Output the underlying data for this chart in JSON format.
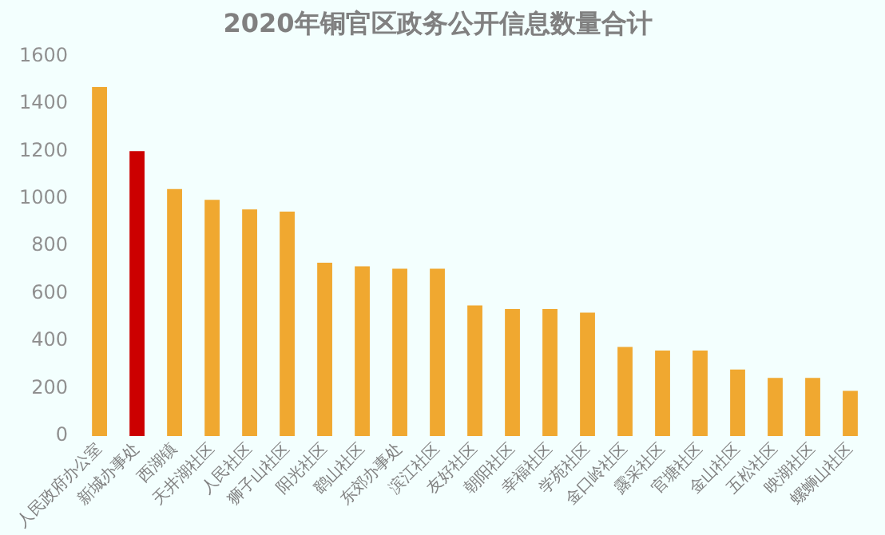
{
  "chart_data": {
    "type": "bar",
    "title": "2020年铜官区政务公开信息数量合计",
    "categories": [
      "人民政府办公室",
      "新城办事处",
      "西湖镇",
      "天井湖社区",
      "人民社区",
      "狮子山社区",
      "阳光社区",
      "鹞山社区",
      "东郊办事处",
      "滨江社区",
      "友好社区",
      "朝阳社区",
      "幸福社区",
      "学苑社区",
      "金口岭社区",
      "露采社区",
      "官塘社区",
      "金山社区",
      "五松社区",
      "映湖社区",
      "螺蛳山社区"
    ],
    "values": [
      1470,
      1200,
      1040,
      995,
      955,
      945,
      730,
      715,
      705,
      705,
      550,
      535,
      535,
      520,
      375,
      360,
      360,
      280,
      245,
      245,
      190
    ],
    "colors": [
      "#f0a830",
      "#cc0000",
      "#f0a830",
      "#f0a830",
      "#f0a830",
      "#f0a830",
      "#f0a830",
      "#f0a830",
      "#f0a830",
      "#f0a830",
      "#f0a830",
      "#f0a830",
      "#f0a830",
      "#f0a830",
      "#f0a830",
      "#f0a830",
      "#f0a830",
      "#f0a830",
      "#f0a830",
      "#f0a830",
      "#f0a830"
    ],
    "ylim": [
      0,
      1600
    ],
    "yticks": [
      0,
      200,
      400,
      600,
      800,
      1000,
      1200,
      1400,
      1600
    ],
    "grid": false
  }
}
